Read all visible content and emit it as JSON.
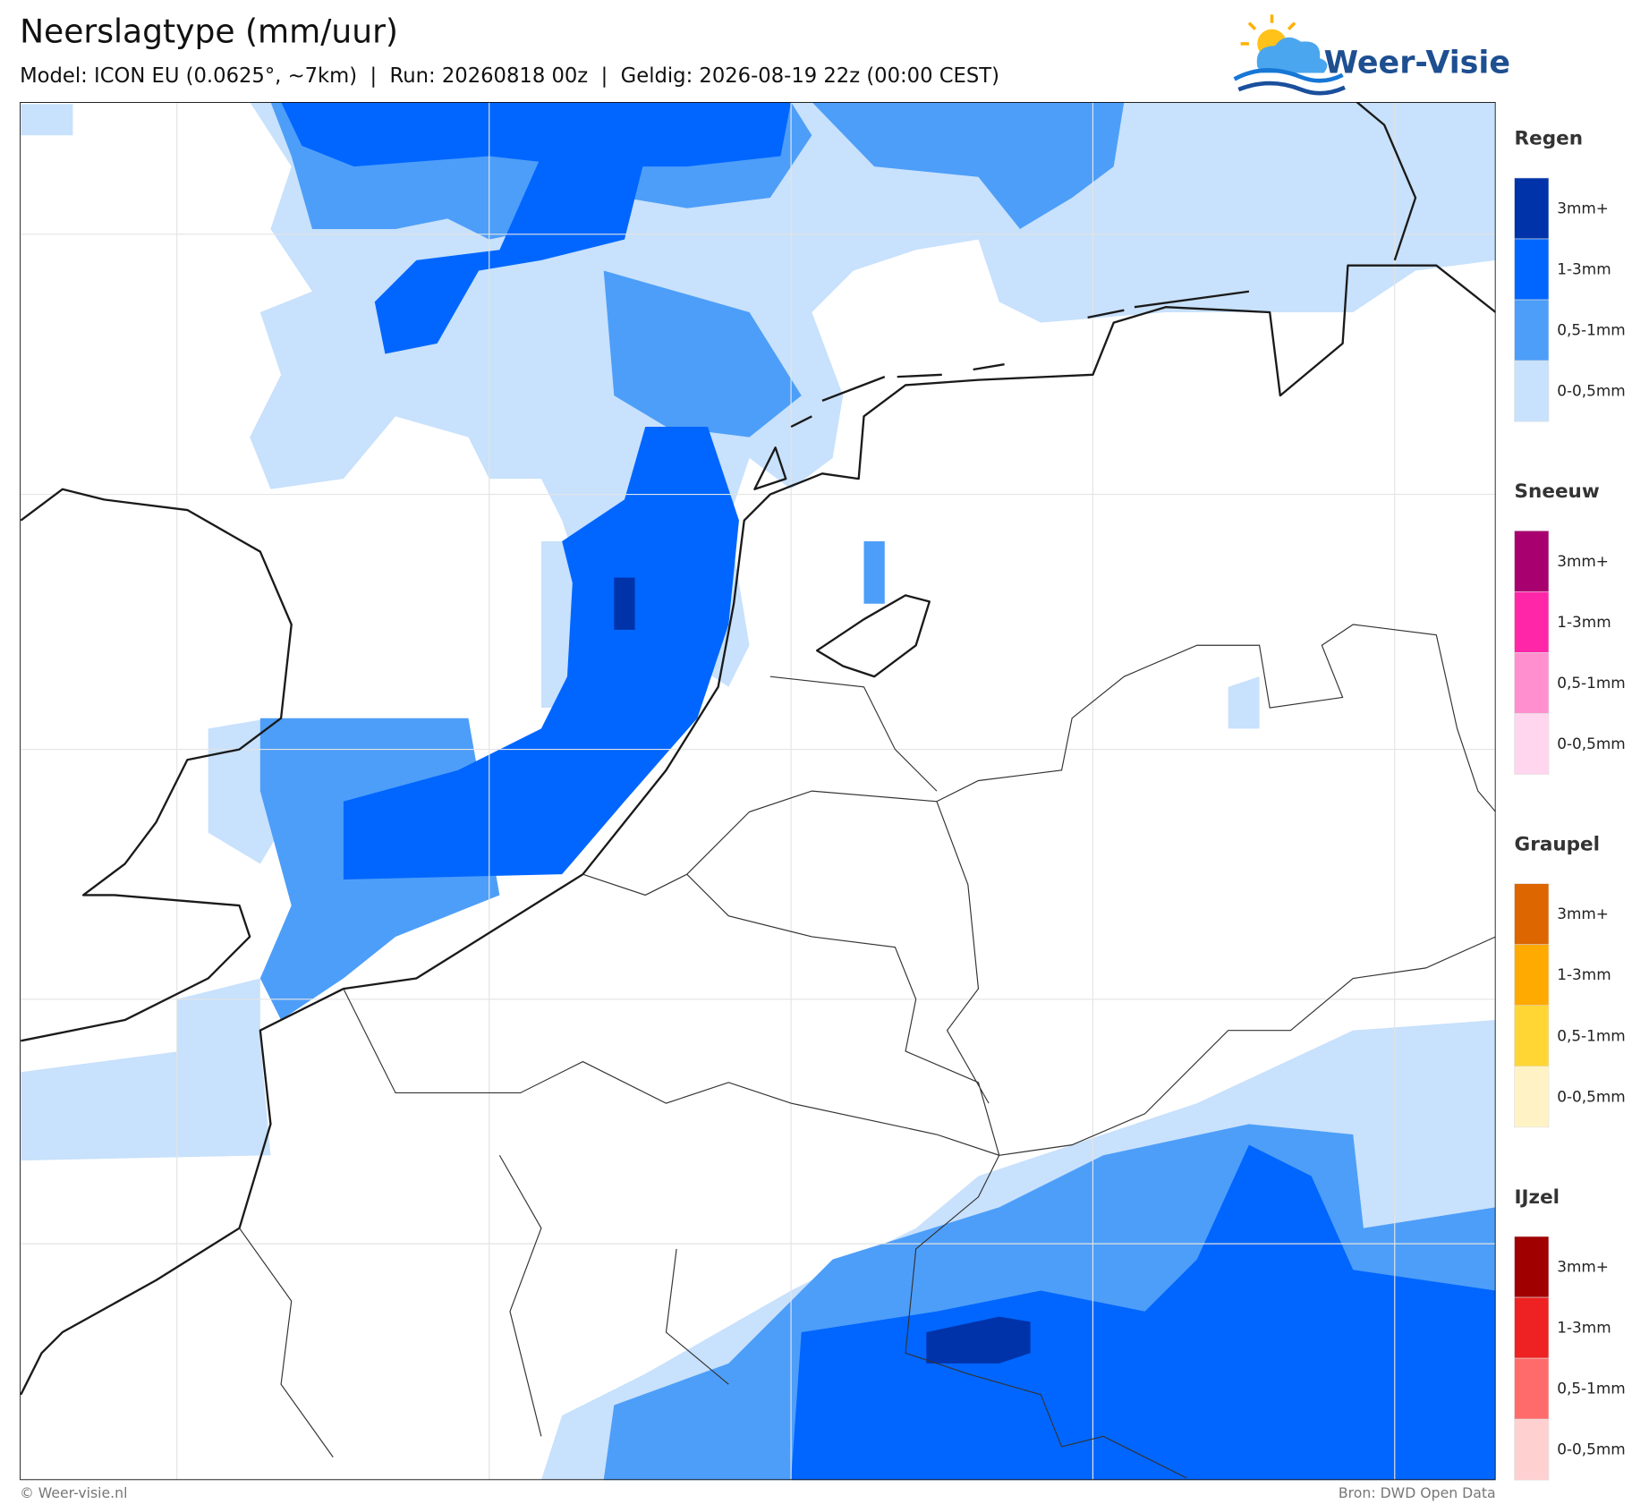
{
  "header": {
    "title": "Neerslagtype (mm/uur)",
    "subtitle": "Model: ICON EU (0.0625°, ~7km)  |  Run: 20260818 00z  |  Geldig: 2026-08-19 22z (00:00 CEST)"
  },
  "logo": {
    "text": "Weer-Visie"
  },
  "legend": [
    {
      "name": "Regen",
      "items": [
        {
          "label": "3mm+",
          "color": "#0033aa"
        },
        {
          "label": "1-3mm",
          "color": "#0066ff"
        },
        {
          "label": "0,5-1mm",
          "color": "#4d9ef9"
        },
        {
          "label": "0-0,5mm",
          "color": "#c8e1fc"
        }
      ]
    },
    {
      "name": "Sneeuw",
      "items": [
        {
          "label": "3mm+",
          "color": "#a8006e"
        },
        {
          "label": "1-3mm",
          "color": "#ff26a8"
        },
        {
          "label": "0,5-1mm",
          "color": "#ff8fce"
        },
        {
          "label": "0-0,5mm",
          "color": "#ffd6ee"
        }
      ]
    },
    {
      "name": "Graupel",
      "items": [
        {
          "label": "3mm+",
          "color": "#dd6600"
        },
        {
          "label": "1-3mm",
          "color": "#ffaa00"
        },
        {
          "label": "0,5-1mm",
          "color": "#ffd633"
        },
        {
          "label": "0-0,5mm",
          "color": "#fff3c6"
        }
      ]
    },
    {
      "name": "IJzel",
      "items": [
        {
          "label": "3mm+",
          "color": "#a00000"
        },
        {
          "label": "1-3mm",
          "color": "#ee2222"
        },
        {
          "label": "0,5-1mm",
          "color": "#ff6b6b"
        },
        {
          "label": "0-0,5mm",
          "color": "#ffd0d0"
        }
      ]
    }
  ],
  "footer": {
    "left": "© Weer-visie.nl",
    "right": "Bron: DWD Open Data"
  }
}
